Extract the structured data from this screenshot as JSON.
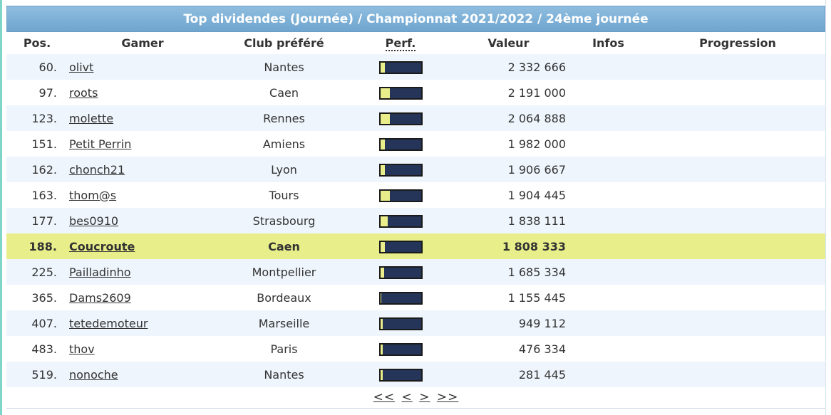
{
  "table_title": "Top dividendes (Journée) / Championnat 2021/2022 / 24ème journée",
  "columns": {
    "pos": "Pos.",
    "gamer": "Gamer",
    "club": "Club préféré",
    "perf": "Perf.",
    "valeur": "Valeur",
    "infos": "Infos",
    "progression": "Progression"
  },
  "rows": [
    {
      "pos": "60.",
      "gamer": "olivt",
      "club": "Nantes",
      "perf": 0.1,
      "valeur": "2 332 666",
      "highlight": false
    },
    {
      "pos": "97.",
      "gamer": "roots",
      "club": "Caen",
      "perf": 0.22,
      "valeur": "2 191 000",
      "highlight": false
    },
    {
      "pos": "123.",
      "gamer": "molette",
      "club": "Rennes",
      "perf": 0.22,
      "valeur": "2 064 888",
      "highlight": false
    },
    {
      "pos": "151.",
      "gamer": "Petit Perrin",
      "club": "Amiens",
      "perf": 0.1,
      "valeur": "1 982 000",
      "highlight": false
    },
    {
      "pos": "162.",
      "gamer": "chonch21",
      "club": "Lyon",
      "perf": 0.1,
      "valeur": "1 906 667",
      "highlight": false
    },
    {
      "pos": "163.",
      "gamer": "thom@s",
      "club": "Tours",
      "perf": 0.22,
      "valeur": "1 904 445",
      "highlight": false
    },
    {
      "pos": "177.",
      "gamer": "bes0910",
      "club": "Strasbourg",
      "perf": 0.18,
      "valeur": "1 838 111",
      "highlight": false
    },
    {
      "pos": "188.",
      "gamer": "Coucroute",
      "club": "Caen",
      "perf": 0.1,
      "valeur": "1 808 333",
      "highlight": true
    },
    {
      "pos": "225.",
      "gamer": "Pailladinho",
      "club": "Montpellier",
      "perf": 0.08,
      "valeur": "1 685 334",
      "highlight": false
    },
    {
      "pos": "365.",
      "gamer": "Dams2609",
      "club": "Bordeaux",
      "perf": 0.02,
      "valeur": "1 155 445",
      "highlight": false
    },
    {
      "pos": "407.",
      "gamer": "tetedemoteur",
      "club": "Marseille",
      "perf": 0.06,
      "valeur": "949 112",
      "highlight": false
    },
    {
      "pos": "483.",
      "gamer": "thov",
      "club": "Paris",
      "perf": 0.06,
      "valeur": "476 334",
      "highlight": false
    },
    {
      "pos": "519.",
      "gamer": "nonoche",
      "club": "Nantes",
      "perf": 0.06,
      "valeur": "281 445",
      "highlight": false
    }
  ],
  "pagination": {
    "first": "<<",
    "prev": "<",
    "next": ">",
    "last": ">>"
  },
  "colors": {
    "title_bar": "#7fb2d8",
    "row_alt": "#eef5fc",
    "row_highlight": "#e8ef8a",
    "perf_bar_bg": "#243559",
    "perf_bar_fill": "#eaee8a"
  }
}
